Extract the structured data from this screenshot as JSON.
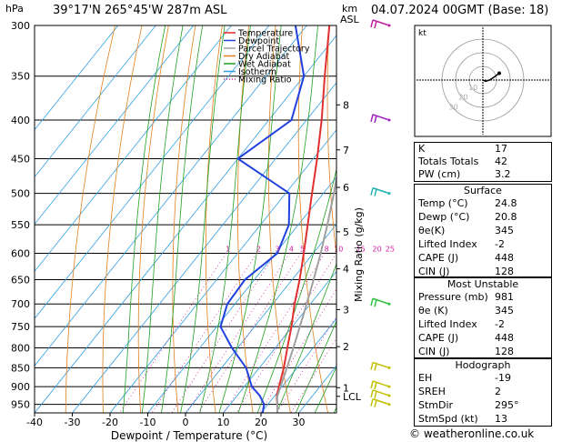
{
  "header": {
    "hpa_label": "hPa",
    "location": "39°17'N  265°45'W  287m  ASL",
    "km_label": "km",
    "asl_label": "ASL",
    "datetime": "04.07.2024  00GMT  (Base: 18)"
  },
  "chart_data": {
    "type": "line",
    "title": "",
    "xlabel": "Dewpoint / Temperature (°C)",
    "ylabel": "",
    "mixing_ratio_axis_label": "Mixing Ratio (g/kg)",
    "xlim": [
      -40,
      40
    ],
    "ylim_hpa": [
      300,
      975
    ],
    "x_ticks": [
      -40,
      -30,
      -20,
      -10,
      0,
      10,
      20,
      30
    ],
    "pressure_ticks": [
      300,
      350,
      400,
      450,
      500,
      550,
      600,
      650,
      700,
      750,
      800,
      850,
      900,
      950
    ],
    "height_km_ticks": [
      {
        "label": "8",
        "p": 382
      },
      {
        "label": "7",
        "p": 438
      },
      {
        "label": "6",
        "p": 491
      },
      {
        "label": "5",
        "p": 562
      },
      {
        "label": "4",
        "p": 629
      },
      {
        "label": "3",
        "p": 712
      },
      {
        "label": "2",
        "p": 797
      },
      {
        "label": "1",
        "p": 903
      },
      {
        "label": "LCL",
        "p": 927
      }
    ],
    "mixing_ratio_labels": [
      "1",
      "2",
      "3",
      "4",
      "5",
      "8",
      "10",
      "15",
      "20",
      "25"
    ],
    "mixing_ratio_values": [
      1,
      2,
      3,
      4,
      5,
      8,
      10,
      15,
      20,
      25
    ],
    "legend": [
      "Temperature",
      "Dewpoint",
      "Parcel Trajectory",
      "Dry Adiabat",
      "Wet Adiabat",
      "Isotherm",
      "Mixing Ratio"
    ],
    "legend_position": "top-left",
    "series": [
      {
        "name": "Temperature",
        "color": "#e03030",
        "points": [
          [
            981,
            24.8
          ],
          [
            950,
            22.5
          ],
          [
            925,
            20.5
          ],
          [
            900,
            19.2
          ],
          [
            850,
            16.5
          ],
          [
            800,
            13.2
          ],
          [
            750,
            9.8
          ],
          [
            700,
            5.8
          ],
          [
            650,
            2.0
          ],
          [
            600,
            -2.5
          ],
          [
            550,
            -7.5
          ],
          [
            500,
            -13.0
          ],
          [
            450,
            -19.0
          ],
          [
            400,
            -26.0
          ],
          [
            350,
            -34.5
          ],
          [
            300,
            -44.0
          ]
        ]
      },
      {
        "name": "Dewpoint",
        "color": "#2040e0",
        "points": [
          [
            981,
            20.8
          ],
          [
            950,
            19.0
          ],
          [
            925,
            16.0
          ],
          [
            900,
            12.0
          ],
          [
            850,
            6.5
          ],
          [
            800,
            -1.5
          ],
          [
            750,
            -9.0
          ],
          [
            700,
            -12.0
          ],
          [
            650,
            -12.5
          ],
          [
            600,
            -9.5
          ],
          [
            550,
            -12.5
          ],
          [
            500,
            -19.0
          ],
          [
            450,
            -40.0
          ],
          [
            400,
            -34.0
          ],
          [
            350,
            -40.0
          ],
          [
            300,
            -53.0
          ]
        ]
      },
      {
        "name": "Parcel Trajectory",
        "color": "#a0a0a0",
        "points": [
          [
            981,
            24.8
          ],
          [
            927,
            20.8
          ],
          [
            900,
            19.6
          ],
          [
            850,
            17.3
          ],
          [
            800,
            14.8
          ],
          [
            750,
            12.0
          ],
          [
            700,
            9.0
          ],
          [
            650,
            5.7
          ],
          [
            600,
            2.0
          ],
          [
            550,
            -2.3
          ],
          [
            500,
            -7.2
          ],
          [
            450,
            -13.0
          ],
          [
            400,
            -20.0
          ],
          [
            350,
            -28.5
          ],
          [
            300,
            -39.0
          ]
        ]
      }
    ],
    "dry_adiabats_theta_C": [
      -30,
      -20,
      -10,
      0,
      10,
      20,
      30,
      40,
      50,
      60,
      70,
      80,
      90,
      100,
      110,
      120,
      130,
      140,
      150,
      160,
      170
    ],
    "wet_adiabats_C": [
      -15,
      -10,
      -5,
      0,
      5,
      10,
      15,
      20,
      25,
      30,
      35,
      40
    ],
    "isotherms_C": [
      -100,
      -90,
      -80,
      -70,
      -60,
      -50,
      -40,
      -30,
      -20,
      -10,
      0,
      10,
      20,
      30,
      40
    ],
    "wind_barbs": [
      {
        "p": 300,
        "color": "#c020a0"
      },
      {
        "p": 400,
        "color": "#a020c0"
      },
      {
        "p": 500,
        "color": "#20b0b0"
      },
      {
        "p": 700,
        "color": "#30c040"
      },
      {
        "p": 850,
        "color": "#c0c000"
      },
      {
        "p": 900,
        "color": "#c0c000"
      },
      {
        "p": 925,
        "color": "#c0c000"
      },
      {
        "p": 950,
        "color": "#c0c000"
      }
    ],
    "hodograph": {
      "label": "kt",
      "ring_labels": [
        "10",
        "20",
        "30"
      ],
      "points": [
        [
          0,
          0
        ],
        [
          2,
          -1
        ],
        [
          5,
          0
        ],
        [
          8,
          2
        ],
        [
          12,
          5
        ]
      ]
    }
  },
  "indices": [
    {
      "label": "K",
      "value": "17"
    },
    {
      "label": "Totals Totals",
      "value": "42"
    },
    {
      "label": "PW (cm)",
      "value": "3.2"
    }
  ],
  "surface": {
    "title": "Surface",
    "rows": [
      {
        "label": "Temp (°C)",
        "value": "24.8"
      },
      {
        "label": "Dewp (°C)",
        "value": "20.8"
      },
      {
        "label": "θe(K)",
        "value": "345"
      },
      {
        "label": "Lifted Index",
        "value": "-2"
      },
      {
        "label": "CAPE (J)",
        "value": "448"
      },
      {
        "label": "CIN (J)",
        "value": "128"
      }
    ]
  },
  "most_unstable": {
    "title": "Most Unstable",
    "rows": [
      {
        "label": "Pressure (mb)",
        "value": "981"
      },
      {
        "label": "θe (K)",
        "value": "345"
      },
      {
        "label": "Lifted Index",
        "value": "-2"
      },
      {
        "label": "CAPE (J)",
        "value": "448"
      },
      {
        "label": "CIN (J)",
        "value": "128"
      }
    ]
  },
  "hodograph_table": {
    "title": "Hodograph",
    "rows": [
      {
        "label": "EH",
        "value": "-19"
      },
      {
        "label": "SREH",
        "value": "2"
      },
      {
        "label": "StmDir",
        "value": "295°"
      },
      {
        "label": "StmSpd (kt)",
        "value": "13"
      }
    ]
  },
  "footer": {
    "copyright": "© weatheronline.co.uk"
  },
  "colors": {
    "temperature": "#e03030",
    "dewpoint": "#2040e0",
    "parcel": "#a0a0a0",
    "dry_adiabat": "#e08020",
    "wet_adiabat": "#20a020",
    "isotherm": "#30a0e0",
    "mixing_ratio": "#d020a0"
  }
}
